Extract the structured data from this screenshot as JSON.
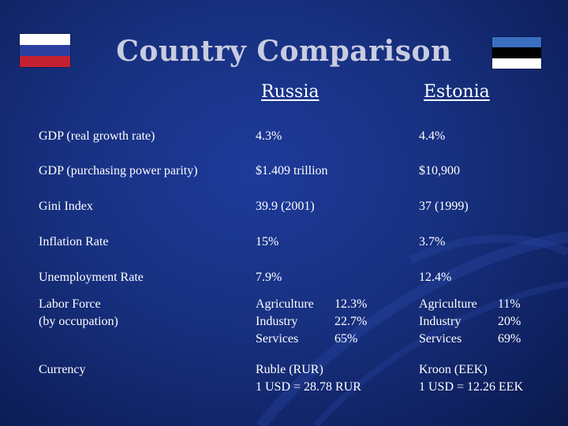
{
  "title": "Country Comparison",
  "flags": {
    "russia": [
      "#ffffff",
      "#2a3fa0",
      "#c42030"
    ],
    "estonia": [
      "#3a6fc0",
      "#000000",
      "#ffffff"
    ]
  },
  "columns": [
    "Russia",
    "Estonia"
  ],
  "rows": [
    {
      "label": "GDP (real growth rate)",
      "russia": "4.3%",
      "estonia": "4.4%"
    },
    {
      "label": "GDP (purchasing power parity)",
      "russia": "$1.409 trillion",
      "estonia": "$10,900"
    },
    {
      "label": "Gini Index",
      "russia": "39.9 (2001)",
      "estonia": "37 (1999)"
    },
    {
      "label": "Inflation Rate",
      "russia": "15%",
      "estonia": "3.7%"
    },
    {
      "label": "Unemployment Rate",
      "russia": "7.9%",
      "estonia": "12.4%"
    }
  ],
  "labor_force": {
    "label_line1": "Labor Force",
    "label_line2": "(by occupation)",
    "russia": [
      {
        "sector": "Agriculture",
        "value": "12.3%"
      },
      {
        "sector": "Industry",
        "value": "22.7%"
      },
      {
        "sector": "Services",
        "value": "65%"
      }
    ],
    "estonia": [
      {
        "sector": "Agriculture",
        "value": "11%"
      },
      {
        "sector": "Industry",
        "value": "20%"
      },
      {
        "sector": "Services",
        "value": "69%"
      }
    ]
  },
  "currency": {
    "label": "Currency",
    "russia_line1": "Ruble (RUR)",
    "russia_line2": "1 USD = 28.78 RUR",
    "estonia_line1": "Kroon (EEK)",
    "estonia_line2": "1 USD = 12.26 EEK"
  }
}
